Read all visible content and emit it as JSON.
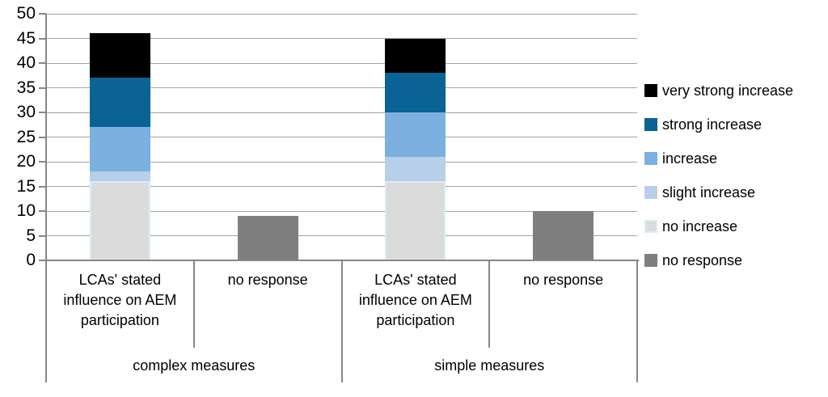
{
  "chart_data": {
    "type": "stacked-bar",
    "title": "",
    "xlabel": "",
    "ylabel": "",
    "ylim": [
      0,
      50
    ],
    "ytick_step": 5,
    "yticks": [
      0,
      5,
      10,
      15,
      20,
      25,
      30,
      35,
      40,
      45,
      50
    ],
    "grid": true,
    "legend_position": "right",
    "groups": [
      {
        "label": "complex measures",
        "categories": [
          "LCAs' stated influence on AEM participation",
          "no response"
        ]
      },
      {
        "label": "simple measures",
        "categories": [
          "LCAs' stated influence on AEM participation",
          "no response"
        ]
      }
    ],
    "bar_totals": [
      46,
      9,
      45,
      10
    ],
    "series": [
      {
        "name": "no increase",
        "color": "#dbdbdb",
        "border_color": "#d9edf3",
        "values": [
          16,
          0,
          16,
          0
        ]
      },
      {
        "name": "slight increase",
        "color": "#b8cfe9",
        "values": [
          2,
          0,
          5,
          0
        ]
      },
      {
        "name": "increase",
        "color": "#7cb0e0",
        "values": [
          9,
          0,
          9,
          0
        ]
      },
      {
        "name": "strong increase",
        "color": "#0b6295",
        "values": [
          10,
          0,
          8,
          0
        ]
      },
      {
        "name": "very strong increase",
        "color": "#000000",
        "values": [
          9,
          0,
          7,
          0
        ]
      },
      {
        "name": "no response",
        "color": "#7f7f7f",
        "values": [
          0,
          9,
          0,
          10
        ]
      }
    ],
    "legend": [
      {
        "label": "very strong increase",
        "color": "#000000"
      },
      {
        "label": "strong increase",
        "color": "#0b6295"
      },
      {
        "label": "increase",
        "color": "#7cb0e0"
      },
      {
        "label": "slight increase",
        "color": "#b8cfe9"
      },
      {
        "label": "no increase",
        "color": "#dbdbdb",
        "border_color": "#d9edf3"
      },
      {
        "label": "no response",
        "color": "#7f7f7f"
      }
    ],
    "colors": {
      "gridline": "#a3a3a3",
      "axis": "#878787",
      "background": "#ffffff"
    }
  }
}
